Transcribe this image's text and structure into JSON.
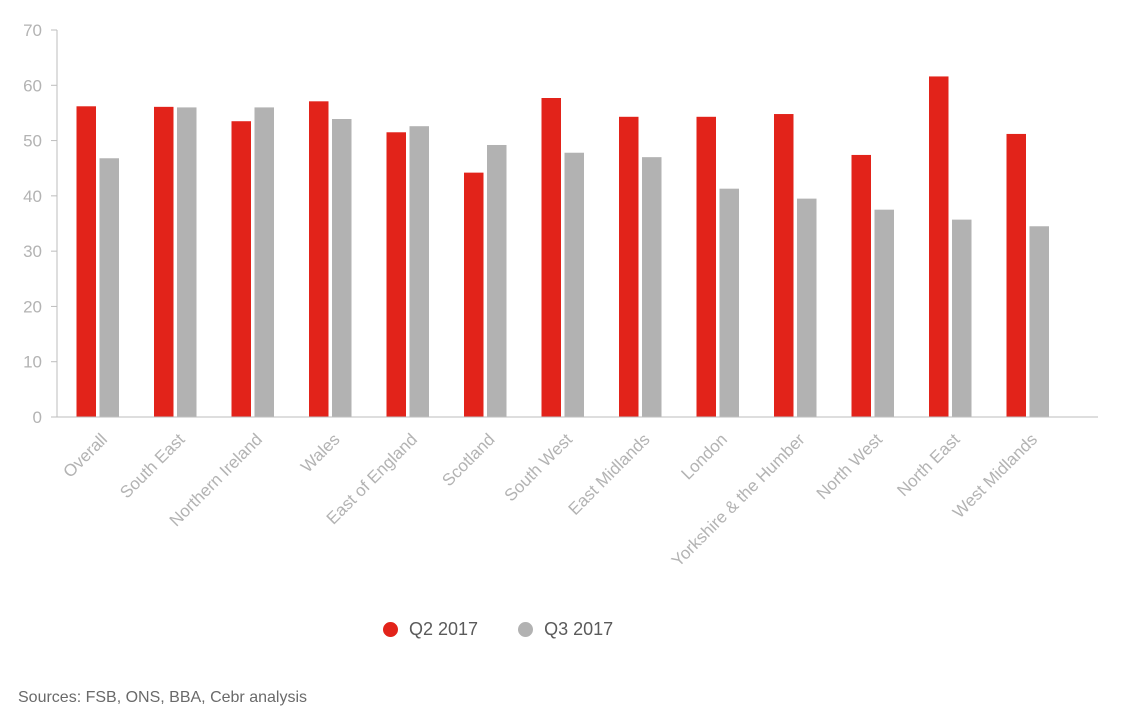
{
  "chart_data": {
    "type": "bar",
    "categories": [
      "Overall",
      "South East",
      "Northern Ireland",
      "Wales",
      "East of England",
      "Scotland",
      "South West",
      "East Midlands",
      "London",
      "Yorkshire & the Humber",
      "North West",
      "North East",
      "West Midlands"
    ],
    "series": [
      {
        "name": "Q2 2017",
        "color": "#e2231a",
        "values": [
          56.2,
          56.1,
          53.5,
          57.1,
          51.5,
          44.2,
          57.7,
          54.3,
          54.3,
          54.8,
          47.4,
          61.6,
          51.2
        ]
      },
      {
        "name": "Q3 2017",
        "color": "#b2b2b2",
        "values": [
          46.8,
          56.0,
          56.0,
          53.9,
          52.6,
          49.2,
          47.8,
          47.0,
          41.3,
          39.5,
          37.5,
          35.7,
          34.5
        ]
      }
    ],
    "ylim": [
      0,
      70
    ],
    "yticks": [
      0,
      10,
      20,
      30,
      40,
      50,
      60,
      70
    ],
    "legend_position": "bottom",
    "grid": false
  },
  "source_note": "Sources: FSB, ONS, BBA, Cebr analysis"
}
